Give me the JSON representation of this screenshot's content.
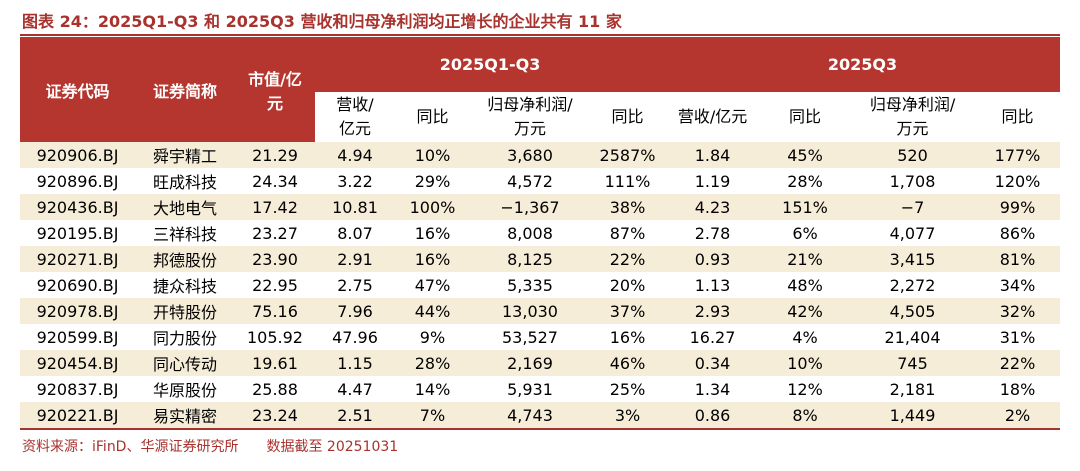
{
  "title": "图表 24：2025Q1-Q3 和 2025Q3 营收和归母净利润均正增长的企业共有 11 家",
  "table": {
    "header_top": [
      "证券代码",
      "证券简称",
      "市值/亿元",
      "2025Q1-Q3",
      "2025Q3"
    ],
    "header_sub": [
      "营收/亿元",
      "同比",
      "归母净利润/万元",
      "同比",
      "营收/亿元",
      "同比",
      "归母净利润/万元",
      "同比"
    ],
    "rows": [
      [
        "920906.BJ",
        "舜宇精工",
        "21.29",
        "4.94",
        "10%",
        "3,680",
        "2587%",
        "1.84",
        "45%",
        "520",
        "177%"
      ],
      [
        "920896.BJ",
        "旺成科技",
        "24.34",
        "3.22",
        "29%",
        "4,572",
        "111%",
        "1.19",
        "28%",
        "1,708",
        "120%"
      ],
      [
        "920436.BJ",
        "大地电气",
        "17.42",
        "10.81",
        "100%",
        "−1,367",
        "38%",
        "4.23",
        "151%",
        "−7",
        "99%"
      ],
      [
        "920195.BJ",
        "三祥科技",
        "23.27",
        "8.07",
        "16%",
        "8,008",
        "87%",
        "2.78",
        "6%",
        "4,077",
        "86%"
      ],
      [
        "920271.BJ",
        "邦德股份",
        "23.90",
        "2.91",
        "16%",
        "8,125",
        "22%",
        "0.93",
        "21%",
        "3,415",
        "81%"
      ],
      [
        "920690.BJ",
        "捷众科技",
        "22.95",
        "2.75",
        "47%",
        "5,335",
        "20%",
        "1.13",
        "48%",
        "2,272",
        "34%"
      ],
      [
        "920978.BJ",
        "开特股份",
        "75.16",
        "7.96",
        "44%",
        "13,030",
        "37%",
        "2.93",
        "42%",
        "4,505",
        "32%"
      ],
      [
        "920599.BJ",
        "同力股份",
        "105.92",
        "47.96",
        "9%",
        "53,527",
        "16%",
        "16.27",
        "4%",
        "21,404",
        "31%"
      ],
      [
        "920454.BJ",
        "同心传动",
        "19.61",
        "1.15",
        "28%",
        "2,169",
        "46%",
        "0.34",
        "10%",
        "745",
        "22%"
      ],
      [
        "920837.BJ",
        "华原股份",
        "25.88",
        "4.47",
        "14%",
        "5,931",
        "25%",
        "1.34",
        "12%",
        "2,181",
        "18%"
      ],
      [
        "920221.BJ",
        "易实精密",
        "23.24",
        "2.51",
        "7%",
        "4,743",
        "3%",
        "0.86",
        "8%",
        "1,449",
        "2%"
      ]
    ]
  },
  "footer": {
    "source": "资料来源：iFinD、华源证券研究所",
    "date": "数据截至 20251031"
  }
}
